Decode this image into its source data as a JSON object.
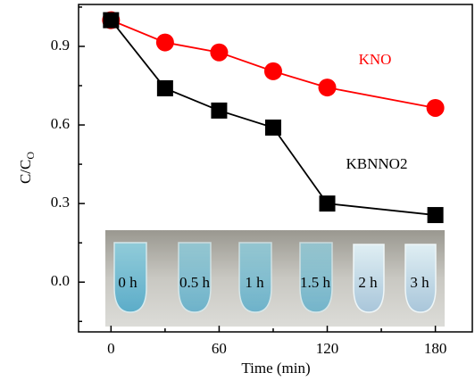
{
  "chart_data": {
    "type": "line",
    "xlabel": "Time (min)",
    "ylabel": {
      "text": "C/C",
      "subscript": "O"
    },
    "xlim": [
      -18,
      201
    ],
    "ylim": [
      -0.19,
      1.06
    ],
    "xticks": [
      0,
      60,
      120,
      180
    ],
    "yticks": [
      {
        "value": 0,
        "label": "0.0"
      },
      0.3,
      0.6,
      0.9
    ],
    "xminorticks": [
      30,
      90,
      150
    ],
    "yminorticks": [
      -0.15,
      0.15,
      0.45,
      0.75,
      1.05
    ],
    "series": [
      {
        "name": "KNO",
        "color": "#ff0000",
        "marker": "circle",
        "x": [
          0,
          30,
          60,
          90,
          120,
          180
        ],
        "values": [
          1.0,
          0.915,
          0.877,
          0.805,
          0.743,
          0.665
        ]
      },
      {
        "name": "KBNNO2",
        "color": "#000000",
        "marker": "square",
        "x": [
          0,
          30,
          60,
          90,
          120,
          180
        ],
        "values": [
          1.0,
          0.74,
          0.655,
          0.59,
          0.3,
          0.256
        ]
      }
    ],
    "inset_labels": [
      "0 h",
      "0.5 h",
      "1 h",
      "1.5 h",
      "2 h",
      "3 h"
    ]
  }
}
